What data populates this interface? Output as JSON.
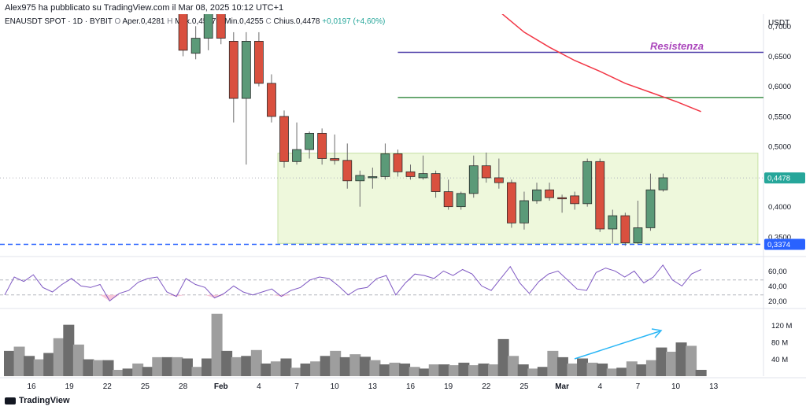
{
  "header": {
    "publisher": "Alex975 ha pubblicato su TradingView.com il Mar 08, 2025 10:12 UTC+1",
    "symbol": "ENAUSDT SPOT · 1D · BYBIT",
    "ohlc": {
      "open_label": "O",
      "open_text": "Aper.0,4281",
      "high_label": "H",
      "high_text": "Max.0,4537",
      "low_label": "L",
      "low_text": "Min.0,4255",
      "close_label": "C",
      "close_text": "Chius.0,4478",
      "change_text": "+0,0197 (+4,60%)"
    }
  },
  "brand": {
    "name": "TradingView",
    "icon": "tradingview-logo-icon"
  },
  "chart_data": [
    {
      "type": "candlestick",
      "title": "",
      "currency_label": "USDT",
      "y_ticks": [
        "0,3500",
        "0,4000",
        "0,4500",
        "0,5000",
        "0,5500",
        "0,6000",
        "0,6500",
        "0,7000"
      ],
      "y_tick_values": [
        0.35,
        0.4,
        0.45,
        0.5,
        0.55,
        0.6,
        0.65,
        0.7
      ],
      "ylim": [
        0.325,
        0.72
      ],
      "x_tick_labels": [
        "16",
        "19",
        "22",
        "25",
        "28",
        "Feb",
        "4",
        "7",
        "10",
        "13",
        "16",
        "19",
        "22",
        "25",
        "Mar",
        "4",
        "7",
        "10",
        "13"
      ],
      "x_tick_bar_index": [
        0,
        3,
        6,
        9,
        12,
        15,
        18,
        21,
        24,
        27,
        30,
        33,
        36,
        39,
        42,
        45,
        48,
        51,
        54
      ],
      "price_tags": [
        {
          "value": 0.4478,
          "label": "0,4478",
          "color": "#26a69a"
        },
        {
          "value": 0.3374,
          "label": "0,3374",
          "color": "#2962ff"
        }
      ],
      "candles": [
        {
          "o": 0.76,
          "h": 0.79,
          "l": 0.65,
          "c": 0.66
        },
        {
          "o": 0.655,
          "h": 0.7,
          "l": 0.645,
          "c": 0.68
        },
        {
          "o": 0.68,
          "h": 0.76,
          "l": 0.66,
          "c": 0.74
        },
        {
          "o": 0.74,
          "h": 0.77,
          "l": 0.67,
          "c": 0.68
        },
        {
          "o": 0.675,
          "h": 0.69,
          "l": 0.54,
          "c": 0.58
        },
        {
          "o": 0.58,
          "h": 0.69,
          "l": 0.47,
          "c": 0.675
        },
        {
          "o": 0.675,
          "h": 0.69,
          "l": 0.6,
          "c": 0.605
        },
        {
          "o": 0.605,
          "h": 0.62,
          "l": 0.54,
          "c": 0.55
        },
        {
          "o": 0.55,
          "h": 0.56,
          "l": 0.465,
          "c": 0.475
        },
        {
          "o": 0.475,
          "h": 0.54,
          "l": 0.47,
          "c": 0.495
        },
        {
          "o": 0.495,
          "h": 0.525,
          "l": 0.48,
          "c": 0.522
        },
        {
          "o": 0.522,
          "h": 0.53,
          "l": 0.47,
          "c": 0.48
        },
        {
          "o": 0.48,
          "h": 0.52,
          "l": 0.47,
          "c": 0.477
        },
        {
          "o": 0.477,
          "h": 0.505,
          "l": 0.43,
          "c": 0.443
        },
        {
          "o": 0.443,
          "h": 0.46,
          "l": 0.4,
          "c": 0.452
        },
        {
          "o": 0.45,
          "h": 0.465,
          "l": 0.43,
          "c": 0.45
        },
        {
          "o": 0.45,
          "h": 0.505,
          "l": 0.445,
          "c": 0.488
        },
        {
          "o": 0.488,
          "h": 0.495,
          "l": 0.45,
          "c": 0.458
        },
        {
          "o": 0.458,
          "h": 0.47,
          "l": 0.445,
          "c": 0.45
        },
        {
          "o": 0.448,
          "h": 0.485,
          "l": 0.445,
          "c": 0.455
        },
        {
          "o": 0.455,
          "h": 0.46,
          "l": 0.415,
          "c": 0.425
        },
        {
          "o": 0.425,
          "h": 0.445,
          "l": 0.395,
          "c": 0.4
        },
        {
          "o": 0.4,
          "h": 0.425,
          "l": 0.395,
          "c": 0.422
        },
        {
          "o": 0.422,
          "h": 0.485,
          "l": 0.415,
          "c": 0.468
        },
        {
          "o": 0.468,
          "h": 0.49,
          "l": 0.44,
          "c": 0.448
        },
        {
          "o": 0.448,
          "h": 0.48,
          "l": 0.43,
          "c": 0.44
        },
        {
          "o": 0.44,
          "h": 0.445,
          "l": 0.365,
          "c": 0.373
        },
        {
          "o": 0.373,
          "h": 0.425,
          "l": 0.362,
          "c": 0.41
        },
        {
          "o": 0.41,
          "h": 0.44,
          "l": 0.405,
          "c": 0.428
        },
        {
          "o": 0.428,
          "h": 0.44,
          "l": 0.41,
          "c": 0.415
        },
        {
          "o": 0.415,
          "h": 0.42,
          "l": 0.39,
          "c": 0.413
        },
        {
          "o": 0.418,
          "h": 0.425,
          "l": 0.395,
          "c": 0.405
        },
        {
          "o": 0.405,
          "h": 0.48,
          "l": 0.4,
          "c": 0.475
        },
        {
          "o": 0.475,
          "h": 0.48,
          "l": 0.358,
          "c": 0.363
        },
        {
          "o": 0.363,
          "h": 0.395,
          "l": 0.34,
          "c": 0.385
        },
        {
          "o": 0.385,
          "h": 0.39,
          "l": 0.335,
          "c": 0.34
        },
        {
          "o": 0.34,
          "h": 0.41,
          "l": 0.338,
          "c": 0.365
        },
        {
          "o": 0.365,
          "h": 0.455,
          "l": 0.36,
          "c": 0.428
        },
        {
          "o": 0.428,
          "h": 0.455,
          "l": 0.425,
          "c": 0.448
        }
      ],
      "candle_first_bar_index": 12,
      "moving_average": {
        "color": "#f23645",
        "points": [
          [
            37,
            0.725
          ],
          [
            39,
            0.69
          ],
          [
            41,
            0.665
          ],
          [
            43,
            0.643
          ],
          [
            45,
            0.625
          ],
          [
            47,
            0.605
          ],
          [
            49,
            0.59
          ],
          [
            51,
            0.575
          ],
          [
            53,
            0.558
          ]
        ]
      },
      "lines": [
        {
          "kind": "resistance",
          "value": 0.6565,
          "from_bar": 29,
          "color": "#4a3aa7"
        },
        {
          "kind": "support",
          "value": 0.5815,
          "from_bar": 29,
          "color": "#3e8f4a"
        }
      ],
      "annotation": {
        "text": "Resistenza",
        "color": "#ab47bc",
        "value": 0.6665
      },
      "range_box": {
        "top": 0.489,
        "bottom": 0.339,
        "from_bar": 20,
        "to_bar": 58,
        "color": "#e8f5d0"
      }
    },
    {
      "type": "line",
      "title": "",
      "color": "#7e57c2",
      "y_ticks": [
        "20,00",
        "40,00",
        "60,00"
      ],
      "y_tick_values": [
        20,
        40,
        60
      ],
      "ylim": [
        12,
        72
      ],
      "levels": [
        28,
        48
      ],
      "values": [
        28,
        52,
        46,
        55,
        38,
        32,
        42,
        50,
        40,
        38,
        42,
        20,
        30,
        34,
        45,
        50,
        52,
        32,
        26,
        50,
        42,
        38,
        24,
        30,
        40,
        32,
        28,
        32,
        36,
        26,
        34,
        38,
        48,
        52,
        50,
        40,
        28,
        36,
        38,
        50,
        54,
        28,
        44,
        56,
        54,
        50,
        60,
        54,
        62,
        56,
        40,
        34,
        50,
        66,
        44,
        30,
        46,
        56,
        60,
        48,
        36,
        34,
        58,
        64,
        60,
        52,
        60,
        44,
        52,
        68,
        48,
        40,
        56,
        62
      ],
      "oversold_fill": "#f8bbd0"
    },
    {
      "type": "bar",
      "title": "",
      "unit_ticks": [
        "40 M",
        "80 M",
        "120 M"
      ],
      "y_tick_values": [
        40,
        80,
        120
      ],
      "ylim": [
        0,
        155
      ],
      "values": [
        60,
        70,
        48,
        40,
        55,
        90,
        122,
        75,
        40,
        38,
        38,
        15,
        18,
        30,
        22,
        45,
        45,
        45,
        42,
        22,
        42,
        148,
        60,
        45,
        48,
        62,
        30,
        35,
        42,
        20,
        30,
        35,
        48,
        60,
        45,
        52,
        46,
        38,
        28,
        32,
        30,
        22,
        18,
        28,
        28,
        26,
        32,
        26,
        30,
        28,
        88,
        48,
        28,
        18,
        22,
        60,
        45,
        30,
        42,
        32,
        30,
        18,
        20,
        35,
        28,
        38,
        68,
        58,
        80,
        72,
        15
      ],
      "bar_colors_note": "gray shades",
      "trend_arrow_color": "#29b6f6"
    }
  ]
}
